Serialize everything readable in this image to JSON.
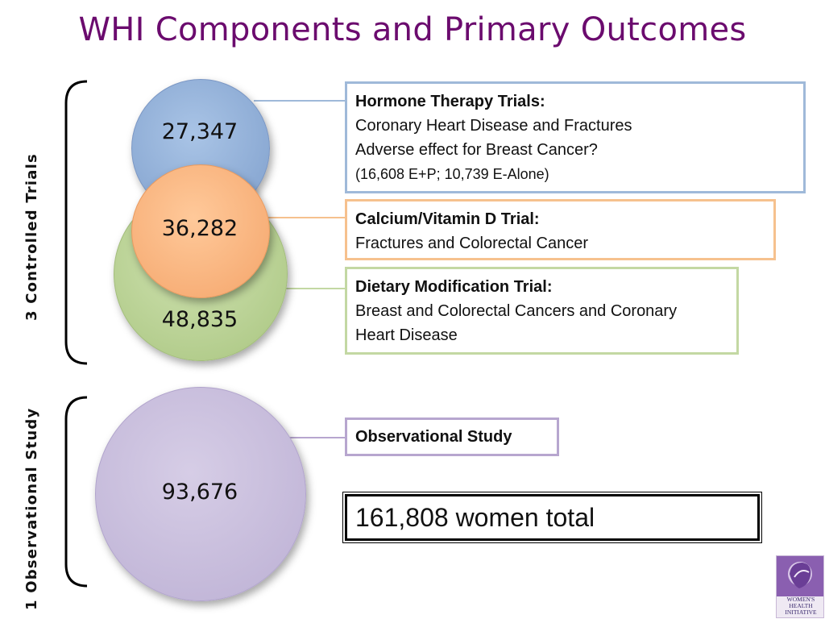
{
  "title": "WHI Components and Primary Outcomes",
  "side_labels": {
    "trials": "3 Controlled Trials",
    "observational": "1 Observational Study"
  },
  "circles": {
    "hormone": "27,347",
    "calcium": "36,282",
    "dietary": "48,835",
    "observational": "93,676"
  },
  "boxes": {
    "hormone": {
      "heading": "Hormone Therapy Trials:",
      "line1": "Coronary Heart Disease and Fractures",
      "line2": "Adverse effect for Breast Cancer?",
      "line3": "(16,608 E+P; 10,739 E-Alone)"
    },
    "calcium": {
      "heading": "Calcium/Vitamin D Trial:",
      "line1": "Fractures and Colorectal Cancer"
    },
    "dietary": {
      "heading": "Dietary Modification Trial:",
      "line1": "Breast and Colorectal Cancers and Coronary",
      "line2": "Heart Disease"
    },
    "observational": {
      "heading": "Observational Study"
    }
  },
  "total": "161,808 women total",
  "logo": {
    "line1": "WOMEN'S",
    "line2": "HEALTH",
    "line3": "INITIATIVE"
  },
  "colors": {
    "title": "#6b0b6e",
    "blue": "#9fb9d9",
    "orange": "#f6c18e",
    "green": "#c3d8a3",
    "purple": "#b7a6cf"
  }
}
